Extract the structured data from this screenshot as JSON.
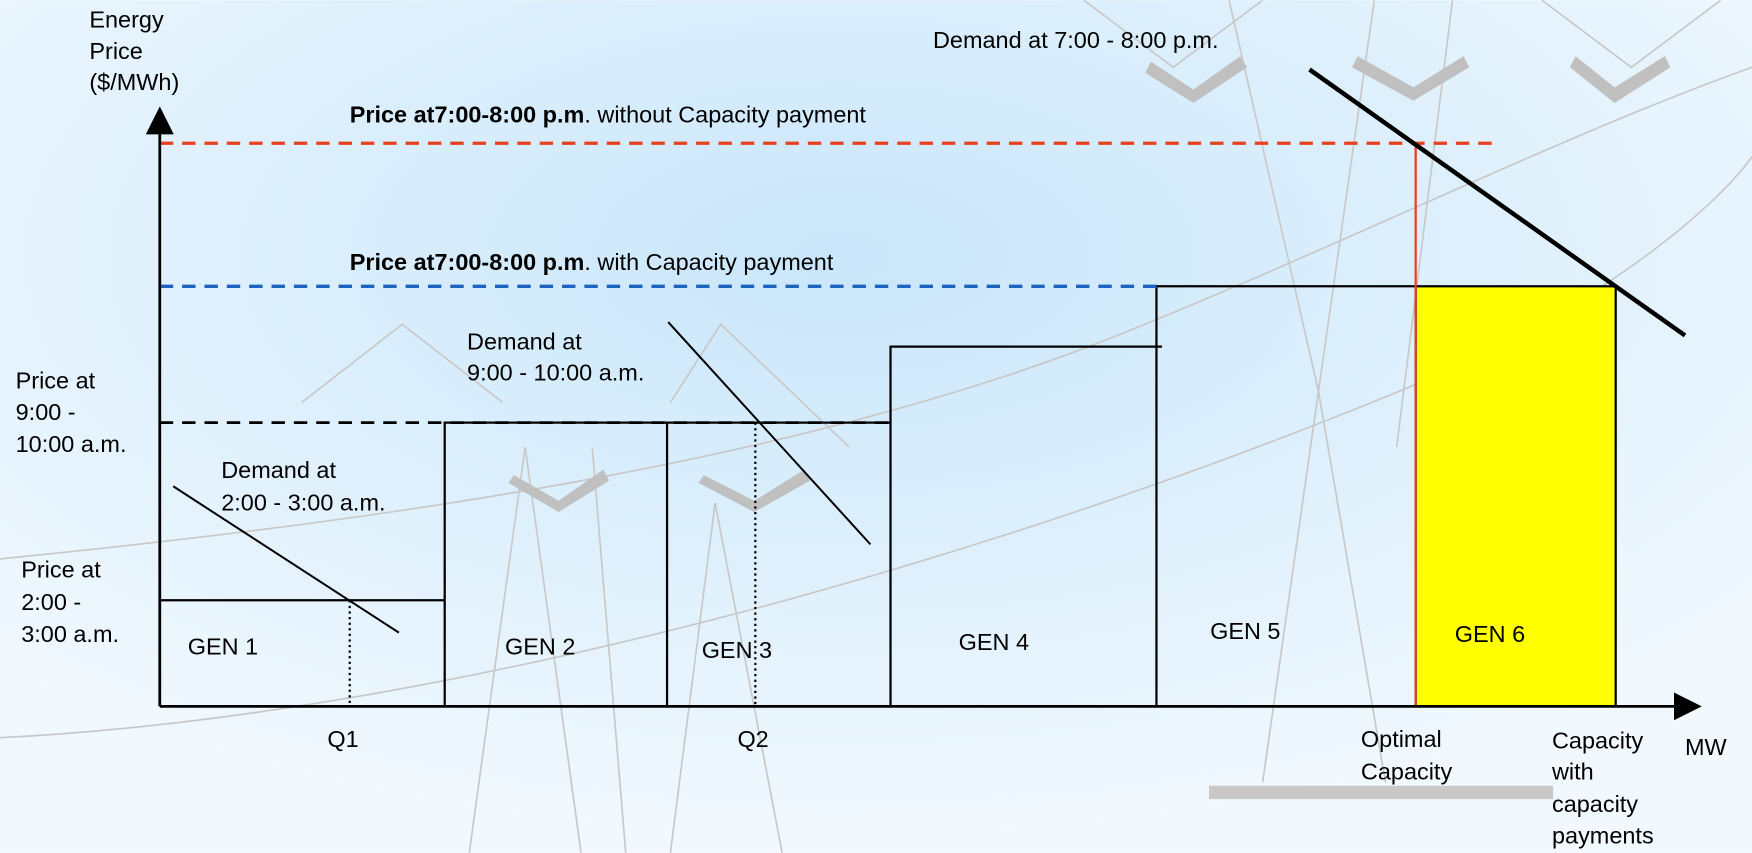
{
  "axis": {
    "y_label": [
      "Energy",
      "Price",
      "($/MWh)"
    ],
    "x_label": "MW"
  },
  "top_demand": "Demand at 7:00 - 8:00 p.m.",
  "price_without": {
    "bold": "Price at7:00-8:00 p.m",
    "rest": ". without Capacity payment"
  },
  "price_with": {
    "bold": "Price at7:00-8:00 p.m",
    "rest": ". with Capacity payment"
  },
  "demand_morning": [
    "Demand at",
    "9:00 - 10:00 a.m."
  ],
  "price_morning": [
    "Price at",
    "9:00 -",
    "10:00 a.m."
  ],
  "demand_night": [
    "Demand at",
    "2:00 - 3:00 a.m."
  ],
  "price_night": [
    "Price at",
    "2:00 -",
    "3:00 a.m."
  ],
  "generators": [
    "GEN 1",
    "GEN 2",
    "GEN 3",
    "GEN 4",
    "GEN 5",
    "GEN 6"
  ],
  "quantities": [
    "Q1",
    "Q2"
  ],
  "optimal_capacity": [
    "Optimal",
    "Capacity"
  ],
  "capacity_with_payments": [
    "Capacity",
    "with",
    "capacity",
    "payments"
  ]
}
